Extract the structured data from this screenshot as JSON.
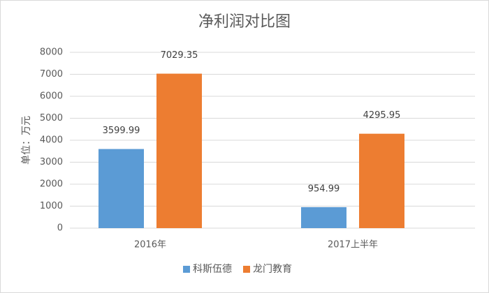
{
  "chart_data": {
    "type": "bar",
    "title": "净利润对比图",
    "y_label": "单位：万元",
    "categories": [
      "2016年",
      "2017上半年"
    ],
    "series": [
      {
        "name": "科斯伍德",
        "color": "#5b9bd5",
        "values": [
          3599.99,
          954.99
        ]
      },
      {
        "name": "龙门教育",
        "color": "#ed7d31",
        "values": [
          7029.35,
          4295.95
        ]
      }
    ],
    "ylim": [
      0,
      8000
    ],
    "yticks": [
      0,
      1000,
      2000,
      3000,
      4000,
      5000,
      6000,
      7000,
      8000
    ],
    "grid": true,
    "legend": "bottom"
  }
}
